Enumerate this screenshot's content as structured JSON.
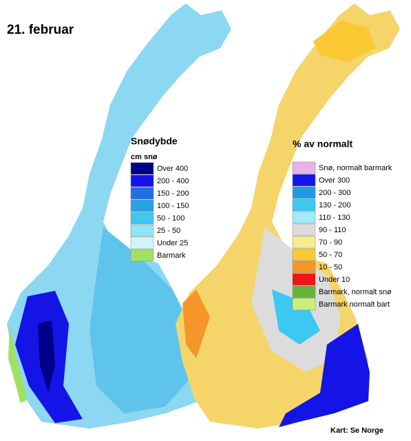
{
  "title": "21. februar",
  "legends": [
    {
      "title": "Snødybde",
      "subtitle": "cm snø",
      "items": [
        {
          "label": "Over 400",
          "color": "#00008b"
        },
        {
          "label": "200 - 400",
          "color": "#1414e6"
        },
        {
          "label": "150 - 200",
          "color": "#1e6ee6"
        },
        {
          "label": "100 - 150",
          "color": "#28a0e6"
        },
        {
          "label": "50 - 100",
          "color": "#3cc8f0"
        },
        {
          "label": "25 - 50",
          "color": "#8ce6f5"
        },
        {
          "label": "Under 25",
          "color": "#d2f5fa"
        },
        {
          "label": "Barmark",
          "color": "#a0e164"
        }
      ]
    },
    {
      "title": "% av normalt",
      "items": [
        {
          "label": "Snø, normalt barmark",
          "color": "#e6b4e6"
        },
        {
          "label": "Over 300",
          "color": "#1414e6"
        },
        {
          "label": "200 - 300",
          "color": "#1e9be6"
        },
        {
          "label": "130 - 200",
          "color": "#3cc8f0"
        },
        {
          "label": "110 - 130",
          "color": "#a0ebf5"
        },
        {
          "label": "90 - 110",
          "color": "#dcdcdc"
        },
        {
          "label": "70 - 90",
          "color": "#faeb8c"
        },
        {
          "label": "50 - 70",
          "color": "#fac832"
        },
        {
          "label": "10 - 50",
          "color": "#f59628"
        },
        {
          "label": "Under 10",
          "color": "#f01414"
        },
        {
          "label": "Barmark, normalt snø",
          "color": "#64b43c"
        },
        {
          "label": "Barmark normalt bart",
          "color": "#c8f078"
        }
      ]
    }
  ],
  "credit": "Kart: Se Norge"
}
